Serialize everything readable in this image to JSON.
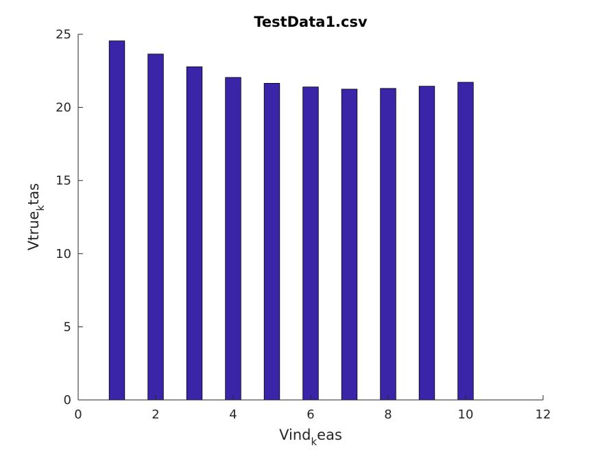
{
  "chart_data": {
    "type": "bar",
    "title": "TestData1.csv",
    "xlabel": {
      "base": "Vind",
      "sub": "k",
      "rest": "eas"
    },
    "ylabel": {
      "base": "Vtrue",
      "sub": "k",
      "rest": "tas"
    },
    "x": [
      1,
      2,
      3,
      4,
      5,
      6,
      7,
      8,
      9,
      10
    ],
    "values": [
      24.55,
      23.65,
      22.78,
      22.05,
      21.65,
      21.4,
      21.25,
      21.3,
      21.45,
      21.72
    ],
    "xlim": [
      0,
      12
    ],
    "ylim": [
      0,
      25
    ],
    "xticks": [
      "0",
      "2",
      "4",
      "6",
      "8",
      "10",
      "12"
    ],
    "yticks": [
      "0",
      "5",
      "10",
      "15",
      "20",
      "25"
    ],
    "bar_color": "#3A24A8",
    "grid": false,
    "legend": "none"
  }
}
